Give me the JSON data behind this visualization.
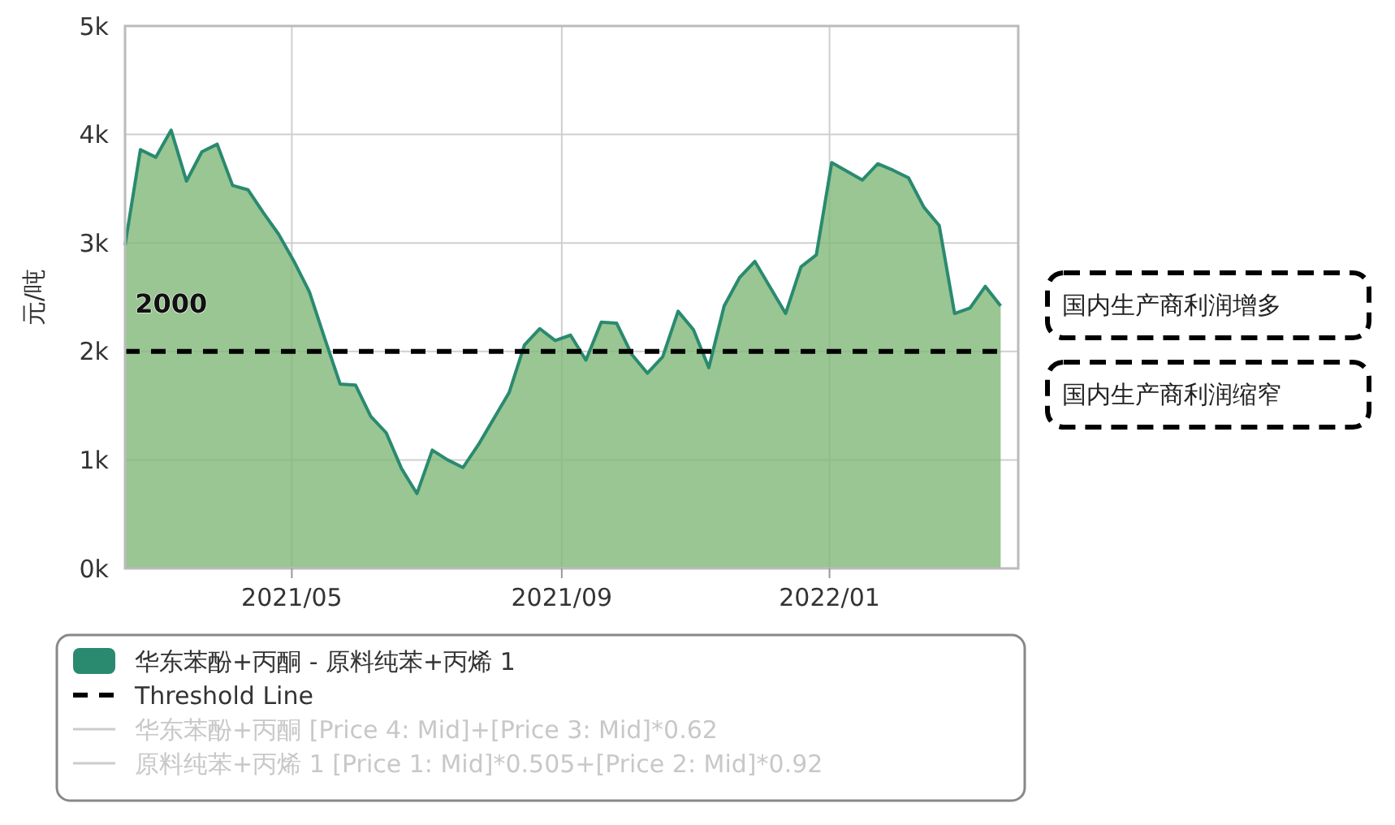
{
  "chart_data": {
    "type": "area",
    "ylabel": "元/吨",
    "x": [
      "2021-02-14",
      "2021-02-21",
      "2021-02-28",
      "2021-03-07",
      "2021-03-14",
      "2021-03-21",
      "2021-03-28",
      "2021-04-04",
      "2021-04-11",
      "2021-04-18",
      "2021-04-25",
      "2021-05-02",
      "2021-05-09",
      "2021-05-16",
      "2021-05-23",
      "2021-05-30",
      "2021-06-06",
      "2021-06-13",
      "2021-06-20",
      "2021-06-27",
      "2021-07-04",
      "2021-07-11",
      "2021-07-18",
      "2021-07-25",
      "2021-08-01",
      "2021-08-08",
      "2021-08-15",
      "2021-08-22",
      "2021-08-29",
      "2021-09-05",
      "2021-09-12",
      "2021-09-19",
      "2021-09-26",
      "2021-10-03",
      "2021-10-10",
      "2021-10-17",
      "2021-10-24",
      "2021-10-31",
      "2021-11-07",
      "2021-11-14",
      "2021-11-21",
      "2021-11-28",
      "2021-12-05",
      "2021-12-12",
      "2021-12-19",
      "2021-12-26",
      "2022-01-02",
      "2022-01-09",
      "2022-01-16",
      "2022-01-23",
      "2022-01-30",
      "2022-02-06",
      "2022-02-13",
      "2022-02-20",
      "2022-02-27",
      "2022-03-06",
      "2022-03-13",
      "2022-03-20"
    ],
    "series": [
      {
        "name": "华东苯酚+丙酮 - 原料纯苯+丙烯 1",
        "color": "#2a8a70",
        "values": [
          2980,
          3860,
          3790,
          4040,
          3570,
          3840,
          3910,
          3530,
          3490,
          3280,
          3080,
          2830,
          2550,
          2120,
          1700,
          1690,
          1400,
          1250,
          920,
          690,
          1090,
          1000,
          930,
          1140,
          1380,
          1620,
          2060,
          2210,
          2100,
          2150,
          1920,
          2270,
          2260,
          1970,
          1800,
          1950,
          2370,
          2200,
          1850,
          2420,
          2680,
          2830,
          2590,
          2350,
          2780,
          2890,
          3740,
          3660,
          3580,
          3730,
          3670,
          3600,
          3330,
          3160,
          2350,
          2400,
          2600,
          2420
        ]
      },
      {
        "name": "Threshold Line",
        "type": "line",
        "color": "#000000",
        "line_style": "dashed",
        "x": [
          "2021-02-14",
          "2022-03-20"
        ],
        "values": [
          2000,
          2000
        ]
      }
    ],
    "xlim": [
      "2021-02-14",
      "2022-03-28"
    ],
    "xticks": [
      {
        "value": "2021-05-01",
        "label": "2021/05"
      },
      {
        "value": "2021-09-01",
        "label": "2021/09"
      },
      {
        "value": "2022-01-01",
        "label": "2022/01"
      }
    ],
    "ylim": [
      0,
      5000
    ],
    "yticks": [
      {
        "value": 0,
        "label": "0k"
      },
      {
        "value": 1000,
        "label": "1k"
      },
      {
        "value": 2000,
        "label": "2k"
      },
      {
        "value": 3000,
        "label": "3k"
      },
      {
        "value": 4000,
        "label": "4k"
      },
      {
        "value": 5000,
        "label": "5k"
      }
    ],
    "grid": true,
    "legend": "bottom",
    "annotations": [
      {
        "text": "2000",
        "x": "2021-03-07",
        "y": 2000
      },
      "国内生产商利润增多",
      "国内生产商利润缩窄",
      "华东苯酚+丙酮 [Price 4: Mid]+[Price 3: Mid]*0.62",
      "原料纯苯+丙烯 1 [Price 1: Mid]*0.505+[Price 2: Mid]*0.92"
    ]
  }
}
